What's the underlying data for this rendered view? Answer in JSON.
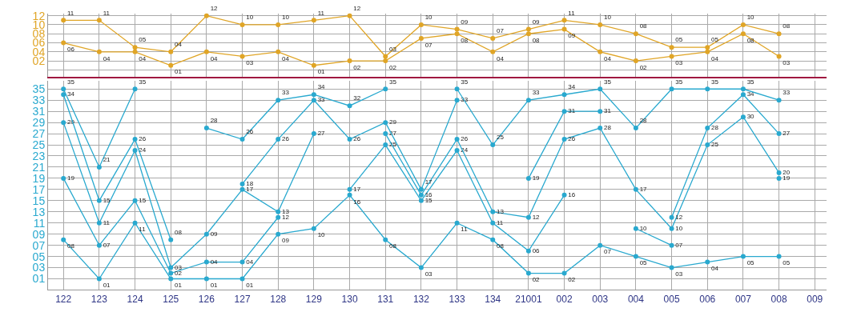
{
  "chart_data": [
    {
      "type": "line",
      "categories": [
        "122",
        "123",
        "124",
        "125",
        "126",
        "127",
        "128",
        "129",
        "130",
        "131",
        "132",
        "133",
        "134",
        "21001",
        "002",
        "003",
        "004",
        "005",
        "006",
        "007",
        "008",
        "009"
      ],
      "ylim": [
        -1.5,
        12.5
      ],
      "yticks": [
        {
          "value": 0,
          "label": null
        },
        {
          "value": 2,
          "label": "02"
        },
        {
          "value": 4,
          "label": "04"
        },
        {
          "value": 6,
          "label": "06"
        },
        {
          "value": 8,
          "label": "08"
        },
        {
          "value": 10,
          "label": "10"
        },
        {
          "value": 12,
          "label": "12"
        }
      ],
      "grid": true,
      "marker": "circle",
      "tick_labels": "y",
      "series": [
        {
          "color": "#e0a526",
          "values": [
            11,
            11,
            5,
            4,
            12,
            10,
            10,
            11,
            12,
            3,
            10,
            9,
            7,
            9,
            11,
            10,
            8,
            5,
            5,
            10,
            8,
            null
          ],
          "value_labels": [
            "11",
            "11",
            "05",
            "04",
            "12",
            "10",
            "10",
            "11",
            "12",
            "03",
            "10",
            "09",
            "07",
            "09",
            "11",
            "10",
            "08",
            "05",
            "05",
            "10",
            "08",
            null
          ]
        },
        {
          "color": "#e0a526",
          "values": [
            6,
            4,
            4,
            1,
            4,
            3,
            4,
            1,
            2,
            2,
            7,
            8,
            4,
            8,
            9,
            4,
            2,
            3,
            4,
            8,
            3,
            null
          ],
          "value_labels": [
            "06",
            "04",
            "04",
            "01",
            "04",
            "03",
            "04",
            "01",
            "02",
            "02",
            "07",
            "08",
            "04",
            "08",
            "09",
            "04",
            "02",
            "03",
            "04",
            "08",
            "03",
            null
          ]
        }
      ]
    },
    {
      "type": "line",
      "categories": [
        "122",
        "123",
        "124",
        "125",
        "126",
        "127",
        "128",
        "129",
        "130",
        "131",
        "132",
        "133",
        "134",
        "21001",
        "002",
        "003",
        "004",
        "005",
        "006",
        "007",
        "008",
        "009"
      ],
      "ylim": [
        -1,
        36.5
      ],
      "yticks": [
        {
          "value": 1,
          "label": "01"
        },
        {
          "value": 3,
          "label": "03"
        },
        {
          "value": 5,
          "label": "05"
        },
        {
          "value": 7,
          "label": "07"
        },
        {
          "value": 9,
          "label": "09"
        },
        11,
        13,
        15,
        17,
        19,
        21,
        23,
        25,
        27,
        29,
        31,
        33,
        35
      ],
      "grid": true,
      "marker": "circle",
      "series": [
        {
          "color": "#29a9cf",
          "values": [
            8,
            1,
            11,
            1,
            1,
            1,
            9,
            10,
            16,
            8,
            3,
            11,
            8,
            2,
            2,
            7,
            5,
            3,
            4,
            5,
            5,
            null
          ],
          "value_labels": [
            "08",
            "01",
            "11",
            "01",
            "01",
            "01",
            "09",
            "10",
            "16",
            "08",
            "03",
            "11",
            "08",
            "02",
            "02",
            "07",
            "05",
            "03",
            "04",
            "05",
            "05",
            null
          ]
        },
        {
          "color": "#29a9cf",
          "values": [
            19,
            7,
            15,
            2,
            4,
            4,
            12,
            null,
            17,
            25,
            15,
            24,
            11,
            6,
            16,
            null,
            10,
            7,
            null,
            null,
            19,
            null
          ],
          "value_labels": [
            "19",
            "07",
            "15",
            "02",
            "04",
            "04",
            "12",
            null,
            "17",
            "25",
            "15",
            "24",
            "11",
            "06",
            "16",
            null,
            "10",
            "07",
            null,
            null,
            "19",
            null
          ]
        },
        {
          "color": "#29a9cf",
          "values": [
            29,
            11,
            24,
            3,
            9,
            17,
            13,
            27,
            null,
            27,
            16,
            26,
            13,
            12,
            26,
            28,
            17,
            10,
            25,
            30,
            20,
            null
          ],
          "value_labels": [
            "29",
            "11",
            "24",
            "03",
            "09",
            "17",
            "13",
            "27",
            null,
            "27",
            "16",
            "26",
            "13",
            "12",
            "26",
            "28",
            "17",
            "10",
            "25",
            "30",
            "20",
            null
          ]
        },
        {
          "color": "#29a9cf",
          "values": [
            34,
            15,
            26,
            8,
            null,
            18,
            26,
            33,
            26,
            29,
            17,
            33,
            null,
            19,
            31,
            31,
            null,
            12,
            28,
            34,
            27,
            null
          ],
          "value_labels": [
            "34",
            "15",
            "26",
            "08",
            null,
            "18",
            "26",
            "33",
            "26",
            "29",
            "17",
            "33",
            null,
            "19",
            "31",
            "31",
            null,
            "12",
            "28",
            "34",
            "27",
            null
          ]
        },
        {
          "color": "#29a9cf",
          "values": [
            35,
            21,
            35,
            null,
            28,
            26,
            33,
            34,
            32,
            35,
            null,
            35,
            25,
            33,
            34,
            35,
            28,
            35,
            35,
            35,
            33,
            null
          ],
          "value_labels": [
            "35",
            "21",
            "35",
            null,
            "28",
            "26",
            "33",
            "34",
            "32",
            "35",
            null,
            "35",
            "25",
            "33",
            "34",
            "35",
            "28",
            "35",
            "35",
            "35",
            "33",
            null
          ]
        }
      ]
    }
  ]
}
